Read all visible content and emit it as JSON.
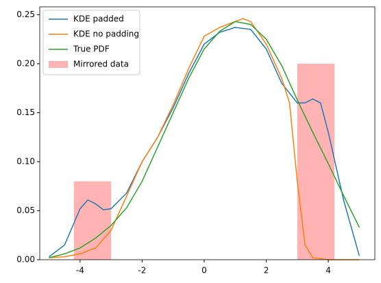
{
  "chart_data": {
    "type": "line",
    "xlim": [
      -5.3,
      5.5
    ],
    "xticks": [
      -4,
      -2,
      0,
      2,
      4
    ],
    "ylim": [
      0,
      0.258
    ],
    "yticks": [
      {
        "value": 0,
        "label": "0.00"
      },
      {
        "value": 0.05,
        "label": "0.05"
      },
      {
        "value": 0.1,
        "label": "0.10"
      },
      {
        "value": 0.15,
        "label": "0.15"
      },
      {
        "value": 0.2,
        "label": "0.20"
      },
      {
        "value": 0.25,
        "label": "0.25"
      }
    ],
    "legend": "upper left",
    "series": [
      {
        "name": "KDE padded",
        "color": "#1f77b4",
        "x": [
          -5,
          -4.5,
          -4,
          -3.75,
          -3.5,
          -3.25,
          -3,
          -2.5,
          -2,
          -1.5,
          -1,
          -0.5,
          0,
          0.5,
          1,
          1.5,
          2,
          2.5,
          3,
          3.25,
          3.5,
          3.75,
          4,
          4.5,
          5
        ],
        "values": [
          0.003,
          0.015,
          0.052,
          0.061,
          0.057,
          0.051,
          0.052,
          0.068,
          0.1,
          0.125,
          0.155,
          0.19,
          0.22,
          0.232,
          0.237,
          0.235,
          0.215,
          0.18,
          0.16,
          0.16,
          0.164,
          0.16,
          0.13,
          0.06,
          0.004
        ]
      },
      {
        "name": "KDE no padding",
        "color": "#ff7f0e",
        "x": [
          -5,
          -4.5,
          -4,
          -3.5,
          -3,
          -2.5,
          -2,
          -1.5,
          -1,
          -0.5,
          0,
          0.5,
          1,
          1.25,
          1.5,
          2,
          2.5,
          2.75,
          3,
          3.25,
          3.5,
          4,
          4.5,
          5
        ],
        "values": [
          0.002,
          0.003,
          0.006,
          0.012,
          0.03,
          0.065,
          0.1,
          0.125,
          0.158,
          0.195,
          0.228,
          0.237,
          0.243,
          0.246,
          0.243,
          0.22,
          0.185,
          0.16,
          0.08,
          0.015,
          0.002,
          0,
          0,
          0
        ]
      },
      {
        "name": "True PDF",
        "color": "#2ca02c",
        "x": [
          -5,
          -4.5,
          -4,
          -3.5,
          -3,
          -2.5,
          -2,
          -1.5,
          -1,
          -0.5,
          0,
          0.5,
          1,
          1.5,
          2,
          2.5,
          3,
          3.5,
          4,
          4.5,
          5
        ],
        "values": [
          0.002,
          0.006,
          0.012,
          0.022,
          0.035,
          0.053,
          0.08,
          0.115,
          0.15,
          0.185,
          0.215,
          0.233,
          0.243,
          0.24,
          0.225,
          0.198,
          0.163,
          0.13,
          0.098,
          0.065,
          0.033
        ]
      }
    ],
    "histogram": {
      "name": "Mirrored data",
      "color": "#ffb3b3",
      "bins": [
        -4.2,
        -3.0,
        3.0,
        4.2
      ],
      "values": [
        0.08,
        0,
        0.2
      ]
    }
  }
}
